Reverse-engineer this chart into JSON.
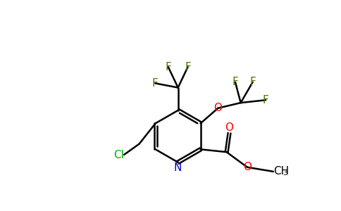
{
  "background_color": "#ffffff",
  "bond_color": "#000000",
  "colors": {
    "N": "#0000cc",
    "O": "#ff0000",
    "Cl": "#00aa00",
    "F": "#4a7a00",
    "C": "#000000"
  },
  "figsize": [
    4.84,
    3.0
  ],
  "dpi": 100
}
